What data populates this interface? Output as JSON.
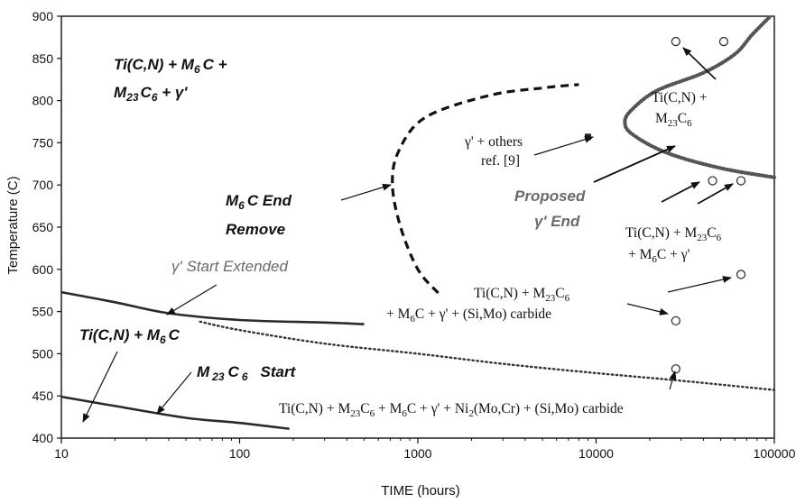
{
  "chart_data": {
    "type": "line",
    "xlabel": "TIME (hours)",
    "ylabel": "Temperature (C)",
    "xscale": "log",
    "xlim": [
      10,
      100000
    ],
    "ylim": [
      400,
      900
    ],
    "x_ticks": [
      "10",
      "100",
      "1000",
      "10000",
      "100000"
    ],
    "y_ticks": [
      "400",
      "450",
      "500",
      "550",
      "600",
      "650",
      "700",
      "750",
      "800",
      "850",
      "900"
    ],
    "series": [
      {
        "name": "M23C6 Start",
        "style": "solid",
        "points": [
          [
            10,
            449
          ],
          [
            20,
            438
          ],
          [
            50,
            424
          ],
          [
            100,
            418
          ],
          [
            190,
            411
          ]
        ]
      },
      {
        "name": "γ' Start Extended",
        "style": "solid",
        "points": [
          [
            10,
            573
          ],
          [
            20,
            561
          ],
          [
            40,
            548
          ],
          [
            100,
            540
          ],
          [
            300,
            537
          ],
          [
            500,
            535
          ]
        ]
      },
      {
        "name": "γ' start (dotted extension)",
        "style": "dotted",
        "points": [
          [
            60,
            538
          ],
          [
            100,
            528
          ],
          [
            300,
            512
          ],
          [
            1000,
            500
          ],
          [
            3000,
            488
          ],
          [
            10000,
            477
          ],
          [
            30000,
            468
          ],
          [
            100000,
            457
          ]
        ]
      },
      {
        "name": "M6C End",
        "style": "dashed",
        "points": [
          [
            1300,
            572
          ],
          [
            1000,
            600
          ],
          [
            800,
            650
          ],
          [
            720,
            700
          ],
          [
            780,
            740
          ],
          [
            1100,
            780
          ],
          [
            2500,
            806
          ],
          [
            5000,
            815
          ],
          [
            8000,
            819
          ]
        ]
      },
      {
        "name": "Proposed γ' End",
        "style": "dotted-heavy",
        "points": [
          [
            100000,
            709
          ],
          [
            50000,
            720
          ],
          [
            25000,
            738
          ],
          [
            16000,
            760
          ],
          [
            14500,
            775
          ],
          [
            16000,
            790
          ],
          [
            22000,
            812
          ],
          [
            40000,
            833
          ],
          [
            60000,
            855
          ],
          [
            75000,
            878
          ],
          [
            95000,
            900
          ]
        ]
      }
    ],
    "markers": [
      {
        "x": 9000,
        "y": 757,
        "shape": "square",
        "label": "γ' + others ref. [9]"
      },
      {
        "x": 28000,
        "y": 870,
        "shape": "circle"
      },
      {
        "x": 52000,
        "y": 870,
        "shape": "circle"
      },
      {
        "x": 45000,
        "y": 705,
        "shape": "circle"
      },
      {
        "x": 65000,
        "y": 705,
        "shape": "circle"
      },
      {
        "x": 65000,
        "y": 594,
        "shape": "circle"
      },
      {
        "x": 28000,
        "y": 539,
        "shape": "circle"
      },
      {
        "x": 28000,
        "y": 482,
        "shape": "circle"
      }
    ]
  },
  "annotations": {
    "region_top_left_line1": "Ti(C,N) + M",
    "region_top_left_line1_sub": "6",
    "region_top_left_line1_end": "C +",
    "region_top_left_line2": "M",
    "region_top_left_line2_sub": "23",
    "region_top_left_line2_mid": "C",
    "region_top_left_line2_sub2": "6",
    "region_top_left_line2_end": " + γ'",
    "m6c_end_line1": "M",
    "m6c_end_line1_sub": "6",
    "m6c_end_line1_end": "C End",
    "m6c_end_line2": "Remove",
    "gamma_start_extended": "γ' Start Extended",
    "ticn_m6c_a": "Ti(C,N) + M",
    "ticn_m6c_sub": "6",
    "ticn_m6c_end": "C",
    "m23c6_start_a": "M",
    "m23c6_start_sub": "23",
    "m23c6_start_mid": "C",
    "m23c6_start_sub2": "6",
    "m23c6_start_end": "Start",
    "gamma_others_line1": "γ' + others",
    "gamma_others_line2": "ref. [9]",
    "proposed_line1": "Proposed",
    "proposed_line2": "γ' End",
    "ticn_m23_line1": "Ti(C,N) +",
    "ticn_m23_line2_a": "M",
    "ticn_m23_line2_sub": "23",
    "ticn_m23_line2_mid": "C",
    "ticn_m23_line2_sub2": "6",
    "right_mid_line1_a": "Ti(C,N) + M",
    "right_mid_line1_sub": "23",
    "right_mid_line1_mid": "C",
    "right_mid_line1_sub2": "6",
    "right_mid_line2_a": "+ M",
    "right_mid_line2_sub": "6",
    "right_mid_line2_end": "C + γ'",
    "center_line1_a": "Ti(C,N) + M",
    "center_line1_sub": "23",
    "center_line1_mid": "C",
    "center_line1_sub2": "6",
    "center_line2_a": "+ M",
    "center_line2_sub": "6",
    "center_line2_end": "C + γ' + (Si,Mo) carbide",
    "bottom_a": "Ti(C,N) + M",
    "bottom_sub1": "23",
    "bottom_b": "C",
    "bottom_sub2": "6",
    "bottom_c": " + M",
    "bottom_sub3": "6",
    "bottom_d": "C + γ' + Ni",
    "bottom_sub4": "2",
    "bottom_e": "(Mo,Cr) + (Si,Mo) carbide"
  }
}
